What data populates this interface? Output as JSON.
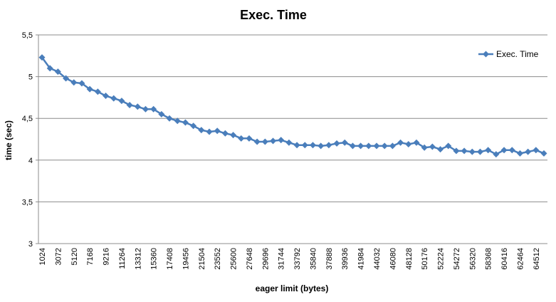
{
  "chart_data": {
    "type": "line",
    "title": "Exec. Time",
    "xlabel": "eager limit (bytes)",
    "ylabel": "time (sec)",
    "ylim": [
      3,
      5.5
    ],
    "y_ticks": [
      "3",
      "3,5",
      "4",
      "4,5",
      "5",
      "5,5"
    ],
    "y_tick_values": [
      3,
      3.5,
      4,
      4.5,
      5,
      5.5
    ],
    "x_tick_labels": [
      "1024",
      "3072",
      "5120",
      "7168",
      "9216",
      "11264",
      "13312",
      "15360",
      "17408",
      "19456",
      "21504",
      "23552",
      "25600",
      "27648",
      "29696",
      "31744",
      "33792",
      "35840",
      "37888",
      "39936",
      "41984",
      "44032",
      "46080",
      "48128",
      "50176",
      "52224",
      "54272",
      "56320",
      "58368",
      "60416",
      "62464",
      "64512"
    ],
    "x": [
      1024,
      2048,
      3072,
      4096,
      5120,
      6144,
      7168,
      8192,
      9216,
      10240,
      11264,
      12288,
      13312,
      14336,
      15360,
      16384,
      17408,
      18432,
      19456,
      20480,
      21504,
      22528,
      23552,
      24576,
      25600,
      26624,
      27648,
      28672,
      29696,
      30720,
      31744,
      32768,
      33792,
      34816,
      35840,
      36864,
      37888,
      38912,
      39936,
      40960,
      41984,
      43008,
      44032,
      45056,
      46080,
      47104,
      48128,
      49152,
      50176,
      51200,
      52224,
      53248,
      54272,
      55296,
      56320,
      57344,
      58368,
      59392,
      60416,
      61440,
      62464,
      63488,
      64512,
      65536
    ],
    "grid": "horizontal",
    "legend_position": "top-right",
    "series": [
      {
        "name": "Exec. Time",
        "color": "#4a7ebb",
        "marker": "diamond",
        "values": [
          5.23,
          5.1,
          5.06,
          4.98,
          4.93,
          4.92,
          4.85,
          4.82,
          4.77,
          4.74,
          4.71,
          4.66,
          4.64,
          4.61,
          4.61,
          4.55,
          4.5,
          4.47,
          4.45,
          4.41,
          4.36,
          4.34,
          4.35,
          4.32,
          4.3,
          4.26,
          4.26,
          4.22,
          4.22,
          4.23,
          4.24,
          4.21,
          4.18,
          4.18,
          4.18,
          4.17,
          4.18,
          4.2,
          4.21,
          4.17,
          4.17,
          4.17,
          4.17,
          4.17,
          4.17,
          4.21,
          4.19,
          4.21,
          4.15,
          4.16,
          4.13,
          4.17,
          4.11,
          4.11,
          4.1,
          4.1,
          4.12,
          4.07,
          4.12,
          4.12,
          4.08,
          4.1,
          4.12,
          4.08
        ]
      }
    ]
  }
}
